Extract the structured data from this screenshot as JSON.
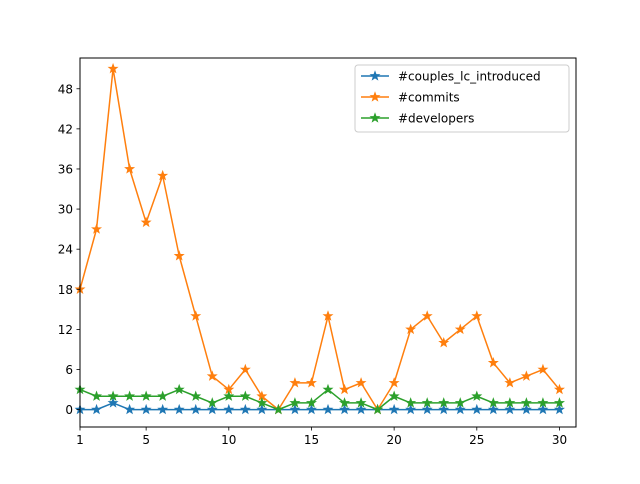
{
  "chart_data": {
    "type": "line",
    "title": "",
    "xlabel": "",
    "ylabel": "",
    "x": [
      1,
      2,
      3,
      4,
      5,
      6,
      7,
      8,
      9,
      10,
      11,
      12,
      13,
      14,
      15,
      16,
      17,
      18,
      19,
      20,
      21,
      22,
      23,
      24,
      25,
      26,
      27,
      28,
      29,
      30
    ],
    "xlim": [
      1,
      31
    ],
    "ylim": [
      -2.6,
      52.6
    ],
    "xticks": [
      1,
      5,
      10,
      15,
      20,
      25,
      30
    ],
    "yticks": [
      0,
      6,
      12,
      18,
      24,
      30,
      36,
      42,
      48
    ],
    "grid": false,
    "legend_position": "top-right",
    "series": [
      {
        "name": "#couples_lc_introduced",
        "color": "#1f77b4",
        "marker": "star",
        "values": [
          0,
          0,
          1,
          0,
          0,
          0,
          0,
          0,
          0,
          0,
          0,
          0,
          0,
          0,
          0,
          0,
          0,
          0,
          0,
          0,
          0,
          0,
          0,
          0,
          0,
          0,
          0,
          0,
          0,
          0
        ]
      },
      {
        "name": "#commits",
        "color": "#ff7f0e",
        "marker": "star",
        "values": [
          18,
          27,
          51,
          36,
          28,
          35,
          23,
          14,
          5,
          3,
          6,
          2,
          0,
          4,
          4,
          14,
          3,
          4,
          0,
          4,
          12,
          14,
          10,
          12,
          14,
          7,
          4,
          5,
          6,
          3
        ]
      },
      {
        "name": "#developers",
        "color": "#2ca02c",
        "marker": "star",
        "values": [
          3,
          2,
          2,
          2,
          2,
          2,
          3,
          2,
          1,
          2,
          2,
          1,
          0,
          1,
          1,
          3,
          1,
          1,
          0,
          2,
          1,
          1,
          1,
          1,
          2,
          1,
          1,
          1,
          1,
          1
        ]
      }
    ]
  }
}
